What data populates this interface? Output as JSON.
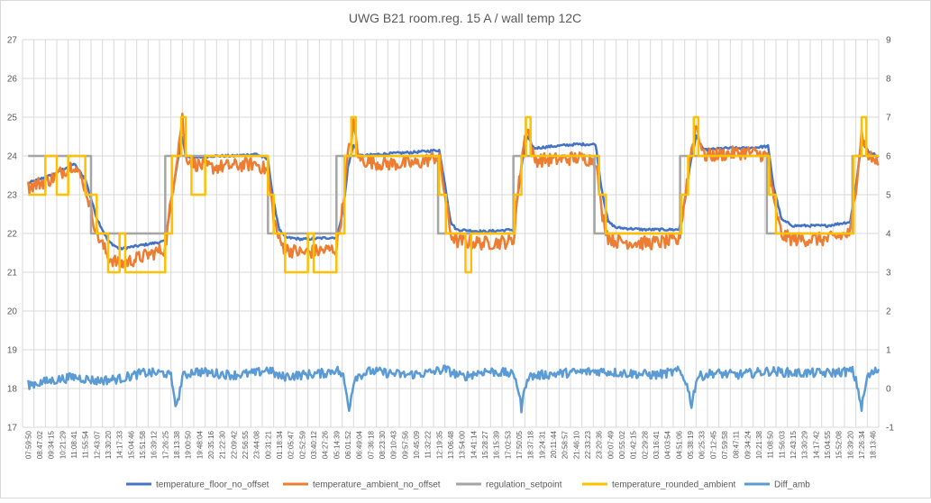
{
  "chart_data": {
    "type": "line",
    "title": "UWG B21 room.reg. 15 A  / wall temp 12C",
    "grid": true,
    "legend_position": "bottom",
    "x_tick_labels": [
      "07:59:50",
      "08:47:02",
      "09:34:15",
      "10:21:29",
      "11:08:41",
      "11:55:54",
      "12:43:07",
      "13:30:20",
      "14:17:33",
      "15:04:46",
      "15:51:58",
      "16:39:12",
      "17:26:25",
      "18:13:38",
      "19:00:50",
      "19:48:04",
      "20:35:16",
      "21:22:30",
      "22:09:42",
      "22:56:55",
      "23:44:08",
      "00:31:21",
      "01:18:34",
      "02:05:47",
      "02:52:59",
      "03:40:12",
      "04:27:26",
      "05:14:39",
      "06:01:52",
      "06:49:04",
      "07:36:18",
      "08:23:30",
      "09:10:43",
      "09:57:56",
      "10:45:09",
      "11:32:22",
      "12:19:35",
      "13:06:48",
      "13:54:00",
      "14:41:14",
      "15:28:27",
      "16:15:39",
      "17:02:53",
      "17:50:05",
      "18:37:18",
      "19:24:31",
      "20:11:44",
      "20:58:57",
      "21:46:10",
      "22:33:23",
      "23:20:36",
      "00:07:49",
      "00:55:02",
      "01:42:15",
      "02:29:28",
      "03:16:41",
      "04:03:54",
      "04:51:06",
      "05:38:19",
      "06:25:33",
      "07:12:45",
      "07:59:58",
      "08:47:11",
      "09:34:24",
      "10:21:38",
      "11:08:50",
      "11:56:03",
      "12:43:15",
      "13:30:29",
      "14:17:42",
      "15:04:55",
      "15:52:08",
      "16:39:20",
      "17:26:34",
      "18:13:46"
    ],
    "y_left": {
      "min": 17,
      "max": 27,
      "ticks": [
        "17",
        "18",
        "19",
        "20",
        "21",
        "22",
        "23",
        "24",
        "25",
        "26",
        "27"
      ]
    },
    "y_right": {
      "min": -1,
      "max": 9,
      "ticks": [
        "-1",
        "0",
        "1",
        "2",
        "3",
        "4",
        "5",
        "6",
        "7",
        "8",
        "9"
      ]
    },
    "series": [
      {
        "name": "temperature_floor_no_offset",
        "axis": "left",
        "color": "#4472C4",
        "points": [
          [
            0,
            23.3
          ],
          [
            2.0,
            23.5
          ],
          [
            4.0,
            23.8
          ],
          [
            5.0,
            23.4
          ],
          [
            6.0,
            22.4
          ],
          [
            7.0,
            21.8
          ],
          [
            8.0,
            21.6
          ],
          [
            9.0,
            21.65
          ],
          [
            10.0,
            21.7
          ],
          [
            11.0,
            21.75
          ],
          [
            12.0,
            21.8
          ],
          [
            12.4,
            22.6
          ],
          [
            13.0,
            23.7
          ],
          [
            13.5,
            24.5
          ],
          [
            13.8,
            24.0
          ],
          [
            14.5,
            23.95
          ],
          [
            16.0,
            24.0
          ],
          [
            18.0,
            24.0
          ],
          [
            20.0,
            24.05
          ],
          [
            21.0,
            23.9
          ],
          [
            21.5,
            22.8
          ],
          [
            22.0,
            22.1
          ],
          [
            22.5,
            21.9
          ],
          [
            24.0,
            21.85
          ],
          [
            27.0,
            21.9
          ],
          [
            27.6,
            22.6
          ],
          [
            28.0,
            23.7
          ],
          [
            28.5,
            24.3
          ],
          [
            29.0,
            24.0
          ],
          [
            31.0,
            24.05
          ],
          [
            34.0,
            24.1
          ],
          [
            36.0,
            24.15
          ],
          [
            36.5,
            23.3
          ],
          [
            37.0,
            22.3
          ],
          [
            37.5,
            22.1
          ],
          [
            40.0,
            22.05
          ],
          [
            42.5,
            22.1
          ],
          [
            42.8,
            22.8
          ],
          [
            43.3,
            23.9
          ],
          [
            43.7,
            24.5
          ],
          [
            44.3,
            24.2
          ],
          [
            46.0,
            24.25
          ],
          [
            48.0,
            24.3
          ],
          [
            49.7,
            24.3
          ],
          [
            50.2,
            23.2
          ],
          [
            50.8,
            22.3
          ],
          [
            51.5,
            22.15
          ],
          [
            54.0,
            22.1
          ],
          [
            57.0,
            22.1
          ],
          [
            57.5,
            22.8
          ],
          [
            58.0,
            23.8
          ],
          [
            58.5,
            24.5
          ],
          [
            59.2,
            24.15
          ],
          [
            61.0,
            24.2
          ],
          [
            63.0,
            24.2
          ],
          [
            64.8,
            24.25
          ],
          [
            65.3,
            23.2
          ],
          [
            66.0,
            22.35
          ],
          [
            67.0,
            22.2
          ],
          [
            70.0,
            22.2
          ],
          [
            72.0,
            22.3
          ],
          [
            72.5,
            23.2
          ],
          [
            73.0,
            24.4
          ],
          [
            73.6,
            24.1
          ],
          [
            74.5,
            24.0
          ]
        ]
      },
      {
        "name": "temperature_ambient_no_offset",
        "axis": "left",
        "color": "#ED7D31",
        "points": [
          [
            0,
            23.2
          ],
          [
            2.0,
            23.4
          ],
          [
            4.0,
            23.8
          ],
          [
            5.0,
            23.2
          ],
          [
            6.0,
            22.0
          ],
          [
            7.0,
            21.4
          ],
          [
            8.0,
            21.2
          ],
          [
            9.0,
            21.3
          ],
          [
            10.0,
            21.4
          ],
          [
            11.0,
            21.5
          ],
          [
            12.0,
            21.6
          ],
          [
            12.4,
            22.6
          ],
          [
            13.0,
            23.9
          ],
          [
            13.5,
            25.0
          ],
          [
            13.8,
            24.0
          ],
          [
            14.5,
            23.8
          ],
          [
            16.0,
            23.7
          ],
          [
            18.0,
            23.75
          ],
          [
            20.0,
            23.8
          ],
          [
            21.0,
            23.6
          ],
          [
            21.5,
            22.4
          ],
          [
            22.0,
            21.8
          ],
          [
            22.5,
            21.6
          ],
          [
            24.0,
            21.5
          ],
          [
            27.0,
            21.6
          ],
          [
            27.6,
            22.8
          ],
          [
            28.0,
            24.0
          ],
          [
            28.5,
            24.8
          ],
          [
            29.0,
            23.9
          ],
          [
            31.0,
            23.8
          ],
          [
            34.0,
            23.8
          ],
          [
            36.0,
            24.0
          ],
          [
            36.5,
            23.0
          ],
          [
            37.0,
            22.0
          ],
          [
            37.5,
            21.8
          ],
          [
            40.0,
            21.75
          ],
          [
            42.5,
            21.8
          ],
          [
            42.8,
            22.8
          ],
          [
            43.3,
            24.1
          ],
          [
            43.7,
            24.8
          ],
          [
            44.3,
            23.9
          ],
          [
            46.0,
            23.9
          ],
          [
            48.0,
            23.95
          ],
          [
            49.7,
            23.9
          ],
          [
            50.2,
            22.6
          ],
          [
            50.8,
            21.9
          ],
          [
            51.5,
            21.8
          ],
          [
            54.0,
            21.75
          ],
          [
            57.0,
            21.8
          ],
          [
            57.5,
            22.9
          ],
          [
            58.0,
            24.0
          ],
          [
            58.5,
            24.8
          ],
          [
            59.2,
            24.0
          ],
          [
            61.0,
            24.05
          ],
          [
            63.0,
            24.1
          ],
          [
            64.8,
            24.0
          ],
          [
            65.3,
            22.8
          ],
          [
            66.0,
            21.95
          ],
          [
            67.0,
            21.85
          ],
          [
            70.0,
            21.85
          ],
          [
            72.0,
            22.0
          ],
          [
            72.5,
            23.2
          ],
          [
            73.0,
            24.6
          ],
          [
            73.6,
            24.0
          ],
          [
            74.5,
            23.8
          ]
        ]
      },
      {
        "name": "regulation_setpoint",
        "axis": "left",
        "color": "#A5A5A5",
        "points": [
          [
            0,
            24
          ],
          [
            5.5,
            24
          ],
          [
            5.5,
            22
          ],
          [
            12.0,
            22
          ],
          [
            12.0,
            24
          ],
          [
            21.0,
            24
          ],
          [
            21.0,
            22
          ],
          [
            27.0,
            22
          ],
          [
            27.0,
            24
          ],
          [
            35.9,
            24
          ],
          [
            35.9,
            22
          ],
          [
            42.5,
            22
          ],
          [
            42.5,
            24
          ],
          [
            49.6,
            24
          ],
          [
            49.6,
            22
          ],
          [
            57.1,
            22
          ],
          [
            57.1,
            24
          ],
          [
            64.7,
            24
          ],
          [
            64.7,
            22
          ],
          [
            72.2,
            22
          ],
          [
            72.2,
            24
          ],
          [
            74.5,
            24
          ]
        ]
      },
      {
        "name": "temperature_rounded_ambient",
        "axis": "left",
        "color": "#FFC000",
        "points": [
          [
            0,
            23
          ],
          [
            1.5,
            23
          ],
          [
            1.5,
            24
          ],
          [
            2.5,
            24
          ],
          [
            2.5,
            23
          ],
          [
            3.5,
            23
          ],
          [
            3.5,
            24
          ],
          [
            5.0,
            24
          ],
          [
            5.0,
            23
          ],
          [
            6.0,
            23
          ],
          [
            6.0,
            22
          ],
          [
            7.0,
            22
          ],
          [
            7.0,
            21
          ],
          [
            8.0,
            21
          ],
          [
            8.0,
            22
          ],
          [
            8.5,
            22
          ],
          [
            8.5,
            21
          ],
          [
            12.0,
            21
          ],
          [
            12.0,
            22
          ],
          [
            12.6,
            22
          ],
          [
            12.6,
            24
          ],
          [
            13.4,
            24
          ],
          [
            13.4,
            25
          ],
          [
            13.8,
            25
          ],
          [
            13.8,
            24
          ],
          [
            14.3,
            24
          ],
          [
            14.3,
            23
          ],
          [
            15.5,
            23
          ],
          [
            15.5,
            24
          ],
          [
            21.0,
            24
          ],
          [
            21.0,
            23
          ],
          [
            21.5,
            23
          ],
          [
            21.5,
            22
          ],
          [
            22.5,
            22
          ],
          [
            22.5,
            21
          ],
          [
            24.5,
            21
          ],
          [
            24.5,
            22
          ],
          [
            25.0,
            22
          ],
          [
            25.0,
            21
          ],
          [
            27.0,
            21
          ],
          [
            27.0,
            22
          ],
          [
            27.7,
            22
          ],
          [
            27.7,
            24
          ],
          [
            28.3,
            24
          ],
          [
            28.3,
            25
          ],
          [
            28.7,
            25
          ],
          [
            28.7,
            24
          ],
          [
            36.0,
            24
          ],
          [
            36.0,
            23
          ],
          [
            36.6,
            23
          ],
          [
            36.6,
            22
          ],
          [
            38.3,
            22
          ],
          [
            38.3,
            21
          ],
          [
            38.8,
            21
          ],
          [
            38.8,
            22
          ],
          [
            42.6,
            22
          ],
          [
            42.6,
            23
          ],
          [
            43.2,
            23
          ],
          [
            43.2,
            24
          ],
          [
            43.6,
            24
          ],
          [
            43.6,
            25
          ],
          [
            44.0,
            25
          ],
          [
            44.0,
            24
          ],
          [
            50.0,
            24
          ],
          [
            50.0,
            23
          ],
          [
            50.6,
            23
          ],
          [
            50.6,
            22
          ],
          [
            57.2,
            22
          ],
          [
            57.2,
            23
          ],
          [
            57.8,
            23
          ],
          [
            57.8,
            24
          ],
          [
            58.3,
            24
          ],
          [
            58.3,
            25
          ],
          [
            58.7,
            25
          ],
          [
            58.7,
            24
          ],
          [
            64.9,
            24
          ],
          [
            64.9,
            23
          ],
          [
            65.5,
            23
          ],
          [
            65.5,
            22
          ],
          [
            72.3,
            22
          ],
          [
            72.3,
            24
          ],
          [
            73.0,
            24
          ],
          [
            73.0,
            25
          ],
          [
            73.4,
            25
          ],
          [
            73.4,
            24
          ],
          [
            74.5,
            24
          ]
        ]
      },
      {
        "name": "Diff_amb",
        "axis": "right",
        "color": "#5B9BD5",
        "points": [
          [
            0,
            0.1
          ],
          [
            2.0,
            0.2
          ],
          [
            4.0,
            0.3
          ],
          [
            6.0,
            0.2
          ],
          [
            8.0,
            0.25
          ],
          [
            10.0,
            0.4
          ],
          [
            12.0,
            0.4
          ],
          [
            12.5,
            0.3
          ],
          [
            13.0,
            -0.5
          ],
          [
            13.5,
            0.3
          ],
          [
            14.5,
            0.45
          ],
          [
            16.0,
            0.4
          ],
          [
            18.0,
            0.35
          ],
          [
            20.0,
            0.4
          ],
          [
            21.0,
            0.5
          ],
          [
            22.0,
            0.3
          ],
          [
            24.0,
            0.35
          ],
          [
            26.0,
            0.4
          ],
          [
            27.0,
            0.5
          ],
          [
            27.6,
            0.3
          ],
          [
            28.1,
            -0.5
          ],
          [
            28.6,
            0.3
          ],
          [
            30.0,
            0.45
          ],
          [
            33.0,
            0.35
          ],
          [
            35.0,
            0.4
          ],
          [
            36.5,
            0.5
          ],
          [
            38.0,
            0.3
          ],
          [
            40.0,
            0.45
          ],
          [
            42.0,
            0.4
          ],
          [
            42.7,
            0.3
          ],
          [
            43.2,
            -0.5
          ],
          [
            43.7,
            0.3
          ],
          [
            45.0,
            0.35
          ],
          [
            47.0,
            0.4
          ],
          [
            50.0,
            0.45
          ],
          [
            52.0,
            0.4
          ],
          [
            55.0,
            0.35
          ],
          [
            57.0,
            0.45
          ],
          [
            57.6,
            0.2
          ],
          [
            58.1,
            -0.4
          ],
          [
            58.6,
            0.3
          ],
          [
            60.0,
            0.4
          ],
          [
            62.0,
            0.35
          ],
          [
            65.0,
            0.45
          ],
          [
            67.0,
            0.4
          ],
          [
            70.0,
            0.4
          ],
          [
            72.2,
            0.45
          ],
          [
            72.6,
            0.1
          ],
          [
            73.0,
            -0.5
          ],
          [
            73.5,
            0.3
          ],
          [
            74.5,
            0.5
          ]
        ]
      }
    ]
  }
}
